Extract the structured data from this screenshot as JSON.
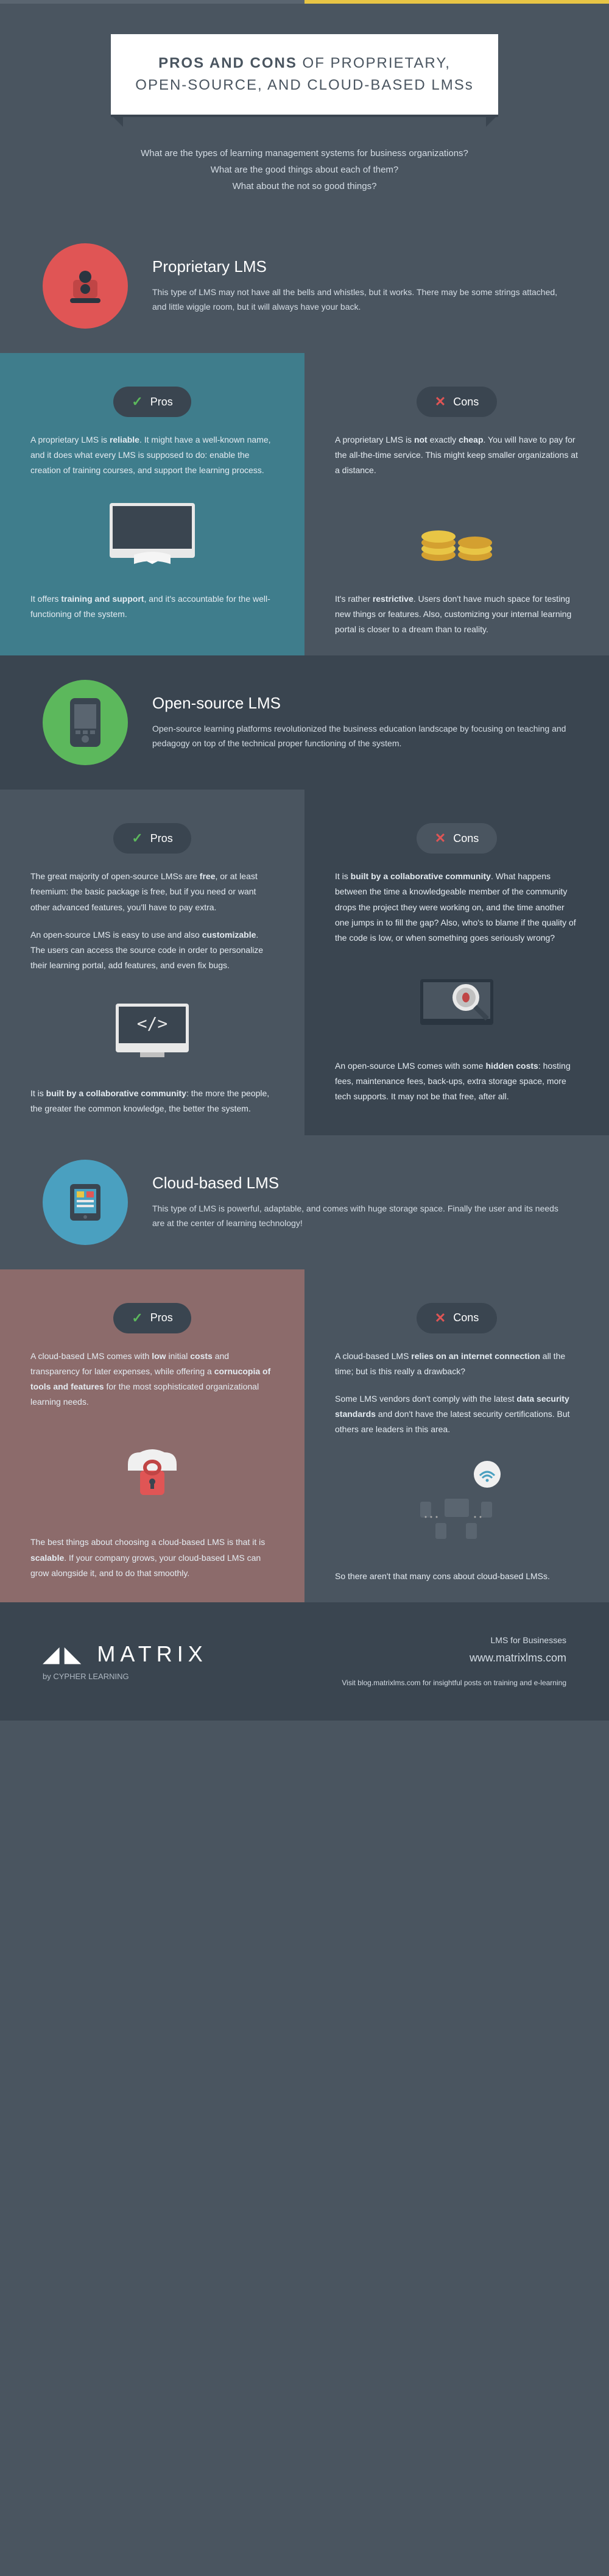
{
  "title_bold": "PROS AND CONS",
  "title_rest": " OF PROPRIETARY,\nOPEN-SOURCE, AND CLOUD-BASED LMSs",
  "intro_l1": "What are the types of learning management systems for business organizations?",
  "intro_l2": "What are the good things about each of them?",
  "intro_l3": "What about the not so good things?",
  "pros_label": "Pros",
  "cons_label": "Cons",
  "sections": [
    {
      "heading": "Proprietary LMS",
      "desc": "This type of LMS may not have all the bells and whistles, but it works. There may be some strings attached, and little wiggle room, but it will always have your back.",
      "icon_bg": "#e05555",
      "pros_bg": "#3f7d8c",
      "cons_bg": "#4a5560",
      "pros": [
        "A proprietary LMS is <b>reliable</b>. It might have a well-known name, and it does what every LMS is supposed to do: enable the creation of training courses, and support the learning process.",
        "It offers <b>training and support</b>, and it's accountable for the well-functioning of the system."
      ],
      "cons": [
        "A proprietary LMS is <b>not</b> exactly <b>cheap</b>. You will have to pay for the all-the-time service. This might keep smaller organizations at a distance.",
        "It's rather <b>restrictive</b>. Users don't have much space for testing new things or features. Also, customizing your internal learning portal is closer to a dream than to reality."
      ]
    },
    {
      "heading": "Open-source LMS",
      "desc": "Open-source learning platforms revolutionized the business education landscape by focusing on teaching and pedagogy on top of the technical proper functioning of the system.",
      "icon_bg": "#5cb85c",
      "pros_bg": "#4a5560",
      "cons_bg": "#3a4550",
      "pros": [
        "The great majority of open-source LMSs are <b>free</b>, or at least freemium: the basic package is free, but if you need or want other advanced features, you'll have to pay extra.",
        "An open-source LMS is easy to use and also <b>customizable</b>. The users can access the source code in order to personalize their learning portal, add features, and even fix bugs.",
        "It is <b>built by a collaborative community</b>: the more the people, the greater the common knowledge, the better the system."
      ],
      "cons": [
        "It is <b>built by a collaborative community</b>. What happens between the time a knowledgeable member of the community drops the project they were working on, and the time another one jumps in to fill the gap? Also, who's to blame if the quality of the code is low, or when something goes seriously wrong?",
        "An open-source LMS comes with some <b>hidden costs</b>: hosting fees, maintenance fees, back-ups, extra storage space, more tech supports. It may not be that free, after all."
      ]
    },
    {
      "heading": "Cloud-based LMS",
      "desc": "This type of LMS is powerful, adaptable, and comes with huge storage space. Finally the user and its needs are at the center of learning technology!",
      "icon_bg": "#4aa0c0",
      "pros_bg": "#8c6b6b",
      "cons_bg": "#4a5560",
      "pros": [
        "A cloud-based LMS comes with <b>low</b> initial <b>costs</b> and transparency for later expenses, while offering a <b>cornucopia of tools and features</b> for the most sophisticated organizational learning needs.",
        "The best things about choosing a cloud-based LMS is that it is <b>scalable</b>. If your company grows, your cloud-based LMS can grow alongside it, and to do that smoothly."
      ],
      "cons": [
        "A cloud-based LMS <b>relies on an internet connection</b> all the time; but is this really a drawback?",
        "Some LMS vendors don't comply with the latest <b>data security standards</b> and don't have the latest security certifications. But others are leaders in this area.",
        "So there aren't that many cons about cloud-based LMSs."
      ]
    }
  ],
  "footer": {
    "brand": "MATRIX",
    "brand_sub": "by CYPHER LEARNING",
    "tag": "LMS for Businesses",
    "site": "www.matrixlms.com",
    "blurb": "Visit blog.matrixlms.com for insightful posts on training and e-learning"
  }
}
